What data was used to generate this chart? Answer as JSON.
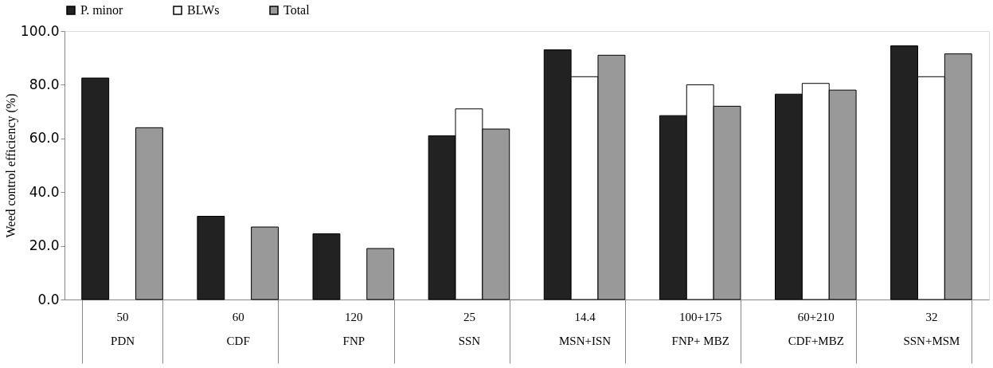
{
  "chart_data": {
    "type": "bar",
    "ylabel": "Weed control efficiency (%)",
    "categories": [
      "50\nPDN",
      "60\nCDF",
      "120\nFNP",
      "25\nSSN",
      "14.4\nMSN+ISN",
      "100+175\nFNP+ MBZ",
      "60+210\nCDF+MBZ",
      "32\nSSN+MSM"
    ],
    "series": [
      {
        "name": "P. minor",
        "color": "#222222",
        "values": [
          82.5,
          31,
          24.5,
          61,
          93,
          68.5,
          76.5,
          94.5
        ]
      },
      {
        "name": "BLWs",
        "color": "#ffffff",
        "values": [
          0,
          0,
          0,
          71,
          83,
          80,
          80.5,
          83
        ]
      },
      {
        "name": "Total",
        "color": "#999999",
        "values": [
          64,
          27,
          19,
          63.5,
          91,
          72,
          78,
          91.5
        ]
      }
    ],
    "ylim": [
      0,
      100
    ],
    "yticks": [
      {
        "value": 0,
        "label": "0.0"
      },
      {
        "value": 20,
        "label": "20.0"
      },
      {
        "value": 40,
        "label": "40.0"
      },
      {
        "value": 60,
        "label": "60.0"
      },
      {
        "value": 80,
        "label": "80.0"
      },
      {
        "value": 100,
        "label": "100.0"
      }
    ],
    "legend": "top",
    "grid": false
  }
}
